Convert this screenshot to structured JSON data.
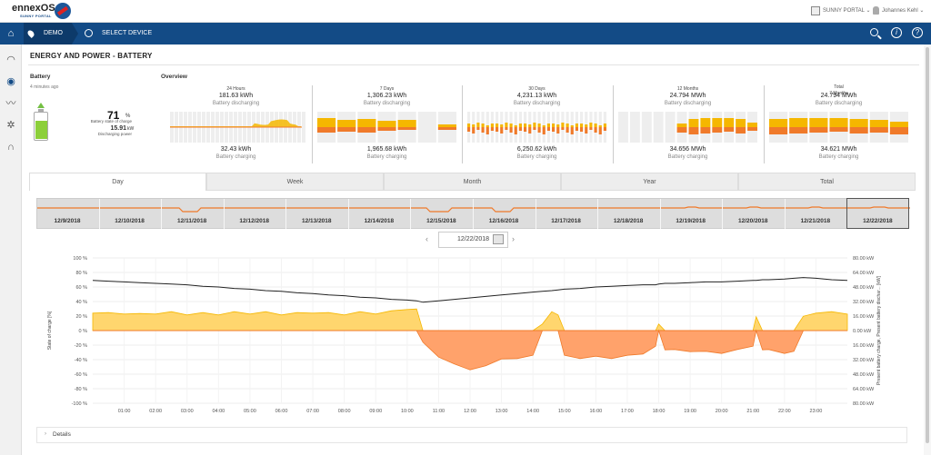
{
  "header": {
    "logo_main": "ennexOS",
    "logo_sub": "SUNNY PORTAL",
    "portal_label": "SUNNY PORTAL ⌄",
    "user_label": "Johannes Kehl ⌄"
  },
  "nav": {
    "demo": "DEMO",
    "select_device": "SELECT DEVICE"
  },
  "page_title": "ENERGY AND POWER - BATTERY",
  "battery": {
    "heading": "Battery",
    "updated": "4 minutes ago",
    "soc_value": "71",
    "soc_unit": "%",
    "soc_label": "Battery state of charge",
    "soc_fraction": 0.71,
    "discharge_value": "15.91",
    "discharge_unit": "kW",
    "discharge_label": "Discharging power"
  },
  "overview": {
    "heading": "Overview",
    "cards": [
      {
        "period": "24 Hours",
        "discharge": "181.63 kWh",
        "discharge_label": "Battery discharging",
        "charge": "32.43 kWh",
        "charge_label": "Battery charging"
      },
      {
        "period": "7 Days",
        "discharge": "1,306.23 kWh",
        "discharge_label": "Battery discharging",
        "charge": "1,965.68 kWh",
        "charge_label": "Battery charging"
      },
      {
        "period": "30 Days",
        "discharge": "4,231.13 kWh",
        "discharge_label": "Battery discharging",
        "charge": "6,250.62 kWh",
        "charge_label": "Battery charging"
      },
      {
        "period": "12 Months",
        "discharge": "24.794 MWh",
        "discharge_label": "Battery discharging",
        "charge": "34.656 MWh",
        "charge_label": "Battery charging"
      },
      {
        "period": "Total\n7 Months",
        "discharge": "24.794 MWh",
        "discharge_label": "Battery discharging",
        "charge": "34.621 MWh",
        "charge_label": "Battery charging"
      }
    ]
  },
  "tabs": [
    "Day",
    "Week",
    "Month",
    "Year",
    "Total"
  ],
  "days": [
    "12/9/2018",
    "12/10/2018",
    "12/11/2018",
    "12/12/2018",
    "12/13/2018",
    "12/14/2018",
    "12/15/2018",
    "12/16/2018",
    "12/17/2018",
    "12/18/2018",
    "12/19/2018",
    "12/20/2018",
    "12/21/2018",
    "12/22/2018"
  ],
  "date_picker": {
    "value": "12/22/2018"
  },
  "colors": {
    "navy": "#134b86",
    "charge": "#f5b700",
    "discharge": "#f07a2a",
    "soc_line": "#222222",
    "battery_green": "#8ccf3a"
  },
  "details_label": "Details",
  "chart_data": {
    "type": "area",
    "ylabel": "State of charge [%]",
    "y2label": "Present battery charge, Present battery dischar... [kW]",
    "ylim": [
      -100,
      100
    ],
    "y2lim": [
      80,
      -80
    ],
    "yticks": [
      "100 %",
      "80 %",
      "60 %",
      "40 %",
      "20 %",
      "0 %",
      "-20 %",
      "-40 %",
      "-60 %",
      "-80 %",
      "-100 %"
    ],
    "y2ticks": [
      "80.00 kW",
      "64.00 kW",
      "48.00 kW",
      "32.00 kW",
      "16.00 kW",
      "0.00 kW",
      "16.00 kW",
      "32.00 kW",
      "48.00 kW",
      "64.00 kW",
      "80.00 kW"
    ],
    "xticks": [
      "01:00",
      "02:00",
      "03:00",
      "04:00",
      "05:00",
      "06:00",
      "07:00",
      "08:00",
      "09:00",
      "10:00",
      "11:00",
      "12:00",
      "13:00",
      "14:00",
      "15:00",
      "16:00",
      "17:00",
      "18:00",
      "19:00",
      "20:00",
      "21:00",
      "22:00",
      "23:00"
    ],
    "x_hours": [
      0,
      0.5,
      1,
      1.5,
      2,
      2.5,
      3,
      3.5,
      4,
      4.5,
      5,
      5.5,
      6,
      6.5,
      7,
      7.5,
      8,
      8.5,
      9,
      9.5,
      10,
      10.3,
      10.5,
      11,
      11.5,
      12,
      12.5,
      13,
      13.5,
      14,
      14.3,
      14.6,
      14.8,
      15,
      15.5,
      16,
      16.5,
      17,
      17.5,
      17.9,
      18,
      18.2,
      18.5,
      19,
      19.5,
      20,
      20.5,
      21,
      21.1,
      21.3,
      21.5,
      22,
      22.3,
      22.6,
      23,
      23.5,
      24
    ],
    "soc": [
      69,
      68,
      67,
      66,
      65,
      64,
      63,
      61,
      60,
      58,
      57,
      55,
      54,
      52,
      51,
      49,
      48,
      46,
      45,
      43,
      42,
      41,
      39,
      41,
      43,
      45,
      47,
      49,
      51,
      53,
      54,
      55,
      56,
      57,
      58,
      60,
      61,
      62,
      63,
      63,
      64,
      65,
      65,
      66,
      67,
      67,
      68,
      69,
      69,
      70,
      70,
      71,
      72,
      73,
      72,
      70,
      69
    ],
    "battery_charge_kw": [
      20,
      19,
      19,
      18,
      19,
      20,
      18,
      19,
      18,
      20,
      19,
      20,
      18,
      19,
      20,
      19,
      18,
      20,
      19,
      21,
      24,
      23,
      0,
      0,
      0,
      0,
      0,
      0,
      0,
      0,
      8,
      20,
      18,
      0,
      0,
      0,
      0,
      0,
      0,
      0,
      8,
      0,
      0,
      0,
      0,
      0,
      0,
      0,
      16,
      0,
      0,
      0,
      0,
      15,
      20,
      20,
      19
    ],
    "battery_discharge_kw": [
      0,
      0,
      0,
      0,
      0,
      0,
      0,
      0,
      0,
      0,
      0,
      0,
      0,
      0,
      0,
      0,
      0,
      0,
      0,
      0,
      0,
      0,
      -12,
      -30,
      -36,
      -44,
      -38,
      -32,
      -30,
      -28,
      0,
      0,
      0,
      -28,
      -30,
      -29,
      -30,
      -28,
      -25,
      -18,
      0,
      -22,
      -20,
      -24,
      -22,
      -26,
      -20,
      -18,
      0,
      -22,
      -20,
      -26,
      -22,
      0,
      0,
      0,
      0
    ]
  }
}
